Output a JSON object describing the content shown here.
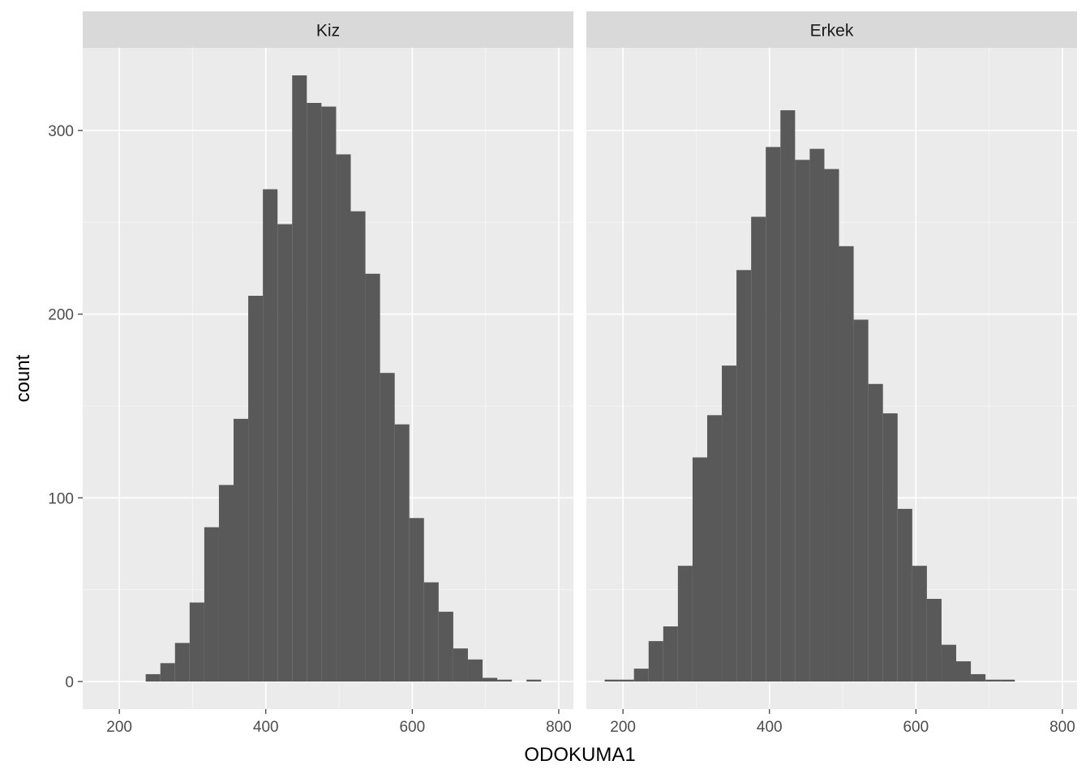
{
  "chart_data": {
    "type": "bar",
    "subtype": "histogram",
    "xlabel": "ODOKUMA1",
    "ylabel": "count",
    "xlim": [
      150,
      820
    ],
    "ylim": [
      -15,
      345
    ],
    "x_ticks": [
      200,
      400,
      600,
      800
    ],
    "y_ticks": [
      0,
      100,
      200,
      300
    ],
    "grid": true,
    "theme_colors": {
      "panel_bg": "#EBEBEB",
      "strip_bg": "#D9D9D9",
      "bar_fill": "#595959",
      "grid_major": "#FFFFFF",
      "tick_text": "#4D4D4D",
      "title_text": "#000000"
    },
    "panels": [
      {
        "strip_label": "Kiz",
        "bins": [
          {
            "x0": 236,
            "x1": 256,
            "count": 4
          },
          {
            "x0": 256,
            "x1": 276,
            "count": 10
          },
          {
            "x0": 276,
            "x1": 296,
            "count": 21
          },
          {
            "x0": 296,
            "x1": 316,
            "count": 43
          },
          {
            "x0": 316,
            "x1": 336,
            "count": 84
          },
          {
            "x0": 336,
            "x1": 356,
            "count": 107
          },
          {
            "x0": 356,
            "x1": 376,
            "count": 143
          },
          {
            "x0": 376,
            "x1": 396,
            "count": 210
          },
          {
            "x0": 396,
            "x1": 416,
            "count": 268
          },
          {
            "x0": 416,
            "x1": 436,
            "count": 249
          },
          {
            "x0": 436,
            "x1": 456,
            "count": 330
          },
          {
            "x0": 456,
            "x1": 476,
            "count": 315
          },
          {
            "x0": 476,
            "x1": 496,
            "count": 313
          },
          {
            "x0": 496,
            "x1": 516,
            "count": 287
          },
          {
            "x0": 516,
            "x1": 536,
            "count": 256
          },
          {
            "x0": 536,
            "x1": 556,
            "count": 222
          },
          {
            "x0": 556,
            "x1": 576,
            "count": 168
          },
          {
            "x0": 576,
            "x1": 596,
            "count": 140
          },
          {
            "x0": 596,
            "x1": 616,
            "count": 89
          },
          {
            "x0": 616,
            "x1": 636,
            "count": 54
          },
          {
            "x0": 636,
            "x1": 656,
            "count": 38
          },
          {
            "x0": 656,
            "x1": 676,
            "count": 18
          },
          {
            "x0": 676,
            "x1": 696,
            "count": 12
          },
          {
            "x0": 696,
            "x1": 716,
            "count": 2
          },
          {
            "x0": 716,
            "x1": 736,
            "count": 1
          },
          {
            "x0": 736,
            "x1": 756,
            "count": 0
          },
          {
            "x0": 756,
            "x1": 776,
            "count": 1
          }
        ]
      },
      {
        "strip_label": "Erkek",
        "bins": [
          {
            "x0": 175,
            "x1": 195,
            "count": 1
          },
          {
            "x0": 195,
            "x1": 215,
            "count": 1
          },
          {
            "x0": 215,
            "x1": 235,
            "count": 7
          },
          {
            "x0": 235,
            "x1": 255,
            "count": 22
          },
          {
            "x0": 255,
            "x1": 275,
            "count": 30
          },
          {
            "x0": 275,
            "x1": 295,
            "count": 63
          },
          {
            "x0": 295,
            "x1": 315,
            "count": 122
          },
          {
            "x0": 315,
            "x1": 335,
            "count": 145
          },
          {
            "x0": 335,
            "x1": 355,
            "count": 172
          },
          {
            "x0": 355,
            "x1": 375,
            "count": 224
          },
          {
            "x0": 375,
            "x1": 395,
            "count": 253
          },
          {
            "x0": 395,
            "x1": 415,
            "count": 291
          },
          {
            "x0": 415,
            "x1": 435,
            "count": 311
          },
          {
            "x0": 435,
            "x1": 455,
            "count": 284
          },
          {
            "x0": 455,
            "x1": 475,
            "count": 290
          },
          {
            "x0": 475,
            "x1": 495,
            "count": 279
          },
          {
            "x0": 495,
            "x1": 515,
            "count": 237
          },
          {
            "x0": 515,
            "x1": 535,
            "count": 197
          },
          {
            "x0": 535,
            "x1": 555,
            "count": 162
          },
          {
            "x0": 555,
            "x1": 575,
            "count": 146
          },
          {
            "x0": 575,
            "x1": 595,
            "count": 94
          },
          {
            "x0": 595,
            "x1": 615,
            "count": 63
          },
          {
            "x0": 615,
            "x1": 635,
            "count": 45
          },
          {
            "x0": 635,
            "x1": 655,
            "count": 20
          },
          {
            "x0": 655,
            "x1": 675,
            "count": 11
          },
          {
            "x0": 675,
            "x1": 695,
            "count": 4
          },
          {
            "x0": 695,
            "x1": 715,
            "count": 1
          },
          {
            "x0": 715,
            "x1": 735,
            "count": 1
          }
        ]
      }
    ]
  }
}
